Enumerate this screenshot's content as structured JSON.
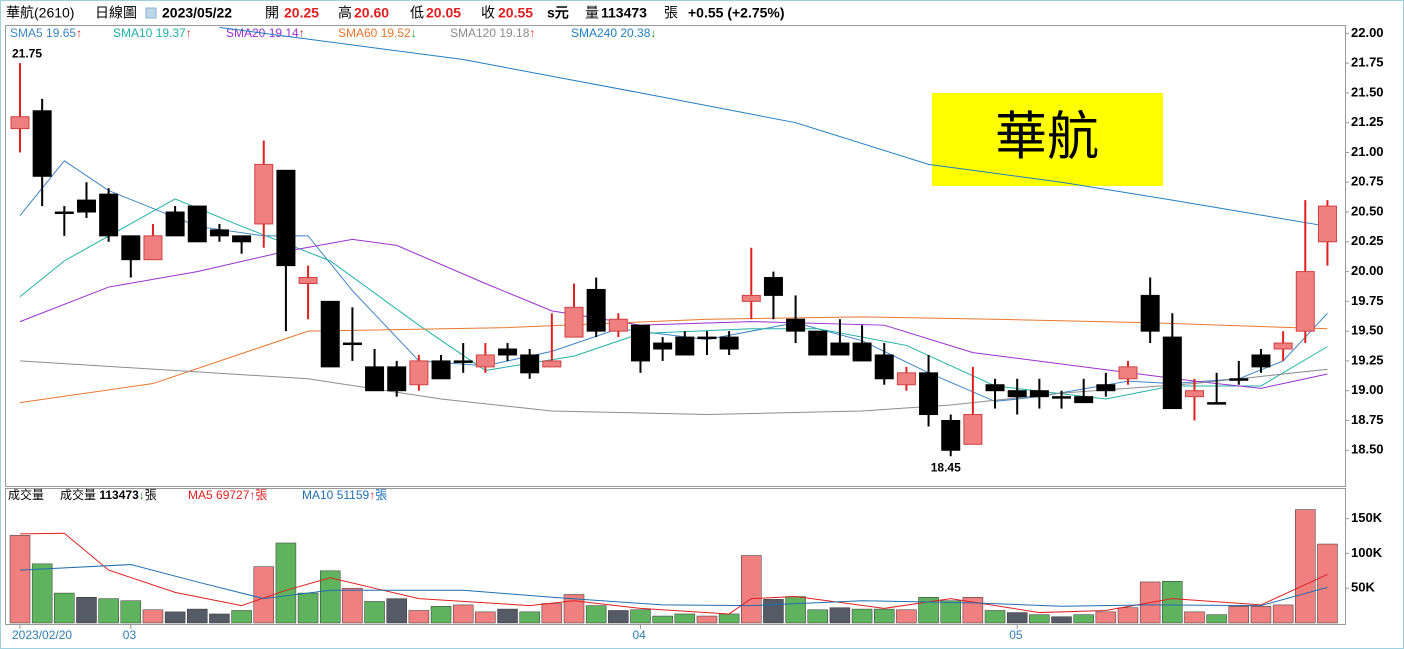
{
  "header": {
    "name": "華航(2610)",
    "period": "日線圖",
    "date": "2023/05/22",
    "fields": [
      {
        "label": "開",
        "value": "20.25"
      },
      {
        "label": "高",
        "value": "20.60"
      },
      {
        "label": "低",
        "value": "20.05"
      },
      {
        "label": "收",
        "value": "20.55"
      }
    ],
    "unit": "s元",
    "volume_label": "量",
    "volume": "113473",
    "volume_unit": "張",
    "change": "+0.55 (+2.75%)"
  },
  "chart_data": {
    "type": "candlestick",
    "title": "華航",
    "up_color": "#f08080",
    "down_color": "#000000",
    "categories": [
      "2023/02/20",
      null,
      null,
      null,
      null,
      "03",
      null,
      null,
      null,
      null,
      null,
      null,
      null,
      null,
      null,
      null,
      null,
      null,
      null,
      null,
      null,
      null,
      null,
      null,
      null,
      null,
      null,
      null,
      "04",
      null,
      null,
      null,
      null,
      null,
      null,
      null,
      null,
      null,
      null,
      null,
      null,
      null,
      null,
      null,
      null,
      "05",
      null,
      null,
      null,
      null,
      null,
      null,
      null,
      null,
      null,
      null,
      null,
      null,
      null,
      null
    ],
    "open": [
      21.2,
      21.35,
      20.5,
      20.6,
      20.65,
      20.3,
      20.1,
      20.5,
      20.55,
      20.35,
      20.3,
      20.4,
      20.85,
      19.9,
      19.75,
      19.4,
      19.2,
      19.2,
      19.05,
      19.25,
      19.25,
      19.2,
      19.35,
      19.3,
      19.2,
      19.45,
      19.85,
      19.5,
      19.55,
      19.4,
      19.45,
      19.45,
      19.45,
      19.75,
      19.95,
      19.6,
      19.5,
      19.4,
      19.4,
      19.3,
      19.05,
      19.15,
      18.75,
      18.55,
      19.05,
      19.0,
      19.0,
      18.95,
      18.95,
      19.05,
      19.1,
      19.8,
      19.45,
      18.95,
      18.9,
      19.1,
      19.3,
      19.35,
      19.5,
      20.25
    ],
    "high": [
      21.75,
      21.45,
      20.55,
      20.75,
      20.7,
      20.3,
      20.4,
      20.55,
      20.55,
      20.4,
      20.3,
      21.1,
      20.85,
      20.05,
      19.75,
      19.7,
      19.35,
      19.25,
      19.3,
      19.3,
      19.4,
      19.4,
      19.4,
      19.35,
      19.65,
      19.9,
      19.95,
      19.65,
      19.55,
      19.45,
      19.5,
      19.5,
      19.5,
      20.2,
      20.0,
      19.8,
      19.5,
      19.6,
      19.55,
      19.4,
      19.2,
      19.3,
      18.8,
      19.2,
      19.1,
      19.1,
      19.1,
      19.0,
      19.1,
      19.15,
      19.25,
      19.95,
      19.65,
      19.1,
      19.15,
      19.25,
      19.35,
      19.5,
      20.6,
      20.6
    ],
    "low": [
      21.0,
      20.55,
      20.3,
      20.45,
      20.25,
      19.95,
      20.1,
      20.3,
      20.25,
      20.25,
      20.15,
      20.2,
      19.5,
      19.6,
      19.2,
      19.25,
      19.0,
      18.95,
      19.0,
      19.1,
      19.15,
      19.15,
      19.25,
      19.1,
      19.2,
      19.45,
      19.45,
      19.45,
      19.15,
      19.25,
      19.3,
      19.3,
      19.3,
      19.6,
      19.6,
      19.4,
      19.3,
      19.3,
      19.25,
      19.05,
      19.0,
      18.7,
      18.45,
      18.55,
      18.85,
      18.8,
      18.85,
      18.85,
      18.9,
      18.95,
      19.05,
      19.4,
      18.85,
      18.75,
      18.9,
      19.05,
      19.15,
      19.25,
      19.4,
      20.05
    ],
    "close": [
      21.3,
      20.8,
      20.5,
      20.5,
      20.3,
      20.1,
      20.3,
      20.3,
      20.25,
      20.3,
      20.25,
      20.9,
      20.05,
      19.95,
      19.2,
      19.4,
      19.0,
      19.0,
      19.25,
      19.1,
      19.25,
      19.3,
      19.3,
      19.15,
      19.25,
      19.7,
      19.5,
      19.6,
      19.25,
      19.35,
      19.3,
      19.45,
      19.35,
      19.8,
      19.8,
      19.5,
      19.3,
      19.3,
      19.25,
      19.1,
      19.15,
      18.8,
      18.5,
      18.8,
      19.0,
      18.95,
      18.95,
      18.95,
      18.9,
      19.0,
      19.2,
      19.5,
      18.85,
      19.0,
      18.9,
      19.1,
      19.2,
      19.4,
      20.0,
      20.55
    ],
    "annotations": [
      {
        "text": "21.75",
        "index": 0
      },
      {
        "text": "18.45",
        "index": 42
      }
    ],
    "ylim": [
      18.2,
      22.07
    ],
    "yticks": [
      {
        "value": 18.5,
        "label": "18.50"
      },
      {
        "value": 18.75,
        "label": "18.75"
      },
      {
        "value": 19,
        "label": "19.00"
      },
      {
        "value": 19.25,
        "label": "19.25"
      },
      {
        "value": 19.5,
        "label": "19.50"
      },
      {
        "value": 19.75,
        "label": "19.75"
      },
      {
        "value": 20,
        "label": "20.00"
      },
      {
        "value": 20.25,
        "label": "20.25"
      },
      {
        "value": 20.5,
        "label": "20.50"
      },
      {
        "value": 20.75,
        "label": "20.75"
      },
      {
        "value": 21,
        "label": "21.00"
      },
      {
        "value": 21.25,
        "label": "21.25"
      },
      {
        "value": 21.5,
        "label": "21.50"
      },
      {
        "value": 21.75,
        "label": "21.75"
      },
      {
        "value": 22,
        "label": "22.00"
      }
    ],
    "series": [
      {
        "name": "SMA5",
        "value": 19.65,
        "arrow": "↑",
        "color": "#3d85c6",
        "x": [
          0,
          2,
          4,
          8,
          11,
          13,
          15,
          18,
          21,
          24,
          27,
          31,
          35,
          38,
          41,
          44,
          46,
          50,
          52,
          55,
          57,
          59
        ],
        "values": [
          20.47,
          20.93,
          20.68,
          20.38,
          20.3,
          20.3,
          19.84,
          19.25,
          19.21,
          19.33,
          19.52,
          19.43,
          19.57,
          19.42,
          19.15,
          18.91,
          18.95,
          19.08,
          19.06,
          19.1,
          19.25,
          19.65
        ]
      },
      {
        "name": "SMA10",
        "value": 19.37,
        "arrow": "↑",
        "color": "#20b2aa",
        "x": [
          0,
          2,
          7,
          10,
          14,
          18,
          21,
          25,
          28,
          33,
          36,
          40,
          44,
          49,
          52,
          56,
          59
        ],
        "values": [
          19.79,
          20.09,
          20.61,
          20.38,
          20.09,
          19.55,
          19.17,
          19.29,
          19.48,
          19.52,
          19.52,
          19.38,
          19.04,
          18.93,
          19.04,
          19.04,
          19.37
        ]
      },
      {
        "name": "SMA20",
        "value": 19.14,
        "arrow": "↑",
        "color": "#9b30d0",
        "x": [
          0,
          4,
          8,
          12,
          15,
          17,
          21,
          24,
          28,
          33,
          39,
          43,
          48,
          53,
          56,
          59
        ],
        "values": [
          19.58,
          19.87,
          20.0,
          20.17,
          20.27,
          20.22,
          19.9,
          19.67,
          19.55,
          19.58,
          19.55,
          19.32,
          19.2,
          19.08,
          19.02,
          19.14
        ]
      },
      {
        "name": "SMA60",
        "value": 19.52,
        "arrow": "↓",
        "color": "#e8772e",
        "x": [
          0,
          6,
          13,
          22,
          31,
          38,
          44,
          51,
          59
        ],
        "values": [
          18.9,
          19.06,
          19.5,
          19.53,
          19.6,
          19.62,
          19.6,
          19.57,
          19.52
        ]
      },
      {
        "name": "SMA120",
        "value": 19.18,
        "arrow": "↑",
        "color": "#8c8c8c",
        "x": [
          0,
          13,
          19,
          24,
          31,
          38,
          42,
          47,
          53,
          59
        ],
        "values": [
          19.25,
          19.1,
          18.93,
          18.83,
          18.8,
          18.83,
          18.88,
          18.98,
          19.06,
          19.18
        ]
      },
      {
        "name": "SMA240",
        "value": 20.38,
        "arrow": "↓",
        "color": "#1f7fc0",
        "x": [
          9,
          20,
          28,
          35,
          41,
          47,
          52,
          59
        ],
        "values": [
          22.05,
          21.78,
          21.5,
          21.25,
          20.9,
          20.75,
          20.6,
          20.38
        ]
      }
    ],
    "volume": {
      "title": "成交量",
      "name": "成交量",
      "value": 113473,
      "arrow": "↓",
      "unit": "張",
      "palette": {
        "r": "#f07f7f",
        "g": "#5fb35f",
        "k": "#555a66"
      },
      "kinds": [
        "r",
        "g",
        "g",
        "k",
        "g",
        "g",
        "r",
        "k",
        "k",
        "k",
        "g",
        "r",
        "g",
        "g",
        "g",
        "r",
        "g",
        "k",
        "r",
        "g",
        "r",
        "r",
        "k",
        "g",
        "r",
        "r",
        "g",
        "k",
        "g",
        "g",
        "g",
        "r",
        "g",
        "r",
        "k",
        "g",
        "g",
        "k",
        "g",
        "g",
        "r",
        "g",
        "g",
        "r",
        "g",
        "k",
        "g",
        "k",
        "g",
        "r",
        "r",
        "r",
        "g",
        "r",
        "g",
        "r",
        "r",
        "r",
        "r",
        "r"
      ],
      "values": [
        126000,
        85000,
        43000,
        37000,
        35000,
        32000,
        19000,
        16000,
        20000,
        13000,
        18000,
        81000,
        115000,
        43000,
        75000,
        50000,
        31000,
        35000,
        18000,
        24000,
        26000,
        16000,
        20000,
        16000,
        28000,
        41000,
        25000,
        18000,
        19000,
        10000,
        13000,
        10000,
        13000,
        97000,
        34000,
        38000,
        19000,
        22000,
        20000,
        20000,
        19000,
        37000,
        32000,
        37000,
        18000,
        15000,
        12000,
        9000,
        12000,
        16000,
        22000,
        59000,
        60000,
        16000,
        12000,
        24000,
        24000,
        26000,
        163000,
        113473
      ],
      "ylim": [
        0,
        194000
      ],
      "yticks": [
        {
          "value": 50000,
          "label": "50K"
        },
        {
          "value": 100000,
          "label": "100K"
        },
        {
          "value": 150000,
          "label": "150K"
        }
      ],
      "series": [
        {
          "name": "MA5",
          "value": 69727,
          "arrow": "↑",
          "unit": "張",
          "color": "#e02020",
          "x": [
            0,
            2,
            4,
            7,
            10,
            12,
            14,
            18,
            23,
            25,
            28,
            32,
            33,
            35,
            39,
            42,
            46,
            49,
            52,
            56,
            59
          ],
          "values": [
            128000,
            129000,
            76000,
            44000,
            25000,
            47000,
            65000,
            35000,
            25000,
            32000,
            21000,
            13000,
            35000,
            38000,
            21000,
            35000,
            15000,
            18000,
            35000,
            26000,
            69727
          ]
        },
        {
          "name": "MA10",
          "value": 51159,
          "arrow": "↑",
          "unit": "張",
          "color": "#1f6fb0",
          "x": [
            0,
            5,
            8,
            11,
            14,
            20,
            24,
            29,
            33,
            38,
            43,
            47,
            51,
            56,
            59
          ],
          "values": [
            76000,
            84000,
            59000,
            35000,
            47000,
            47000,
            37000,
            26000,
            25000,
            32000,
            29000,
            24000,
            26000,
            25000,
            51159
          ]
        }
      ]
    }
  }
}
